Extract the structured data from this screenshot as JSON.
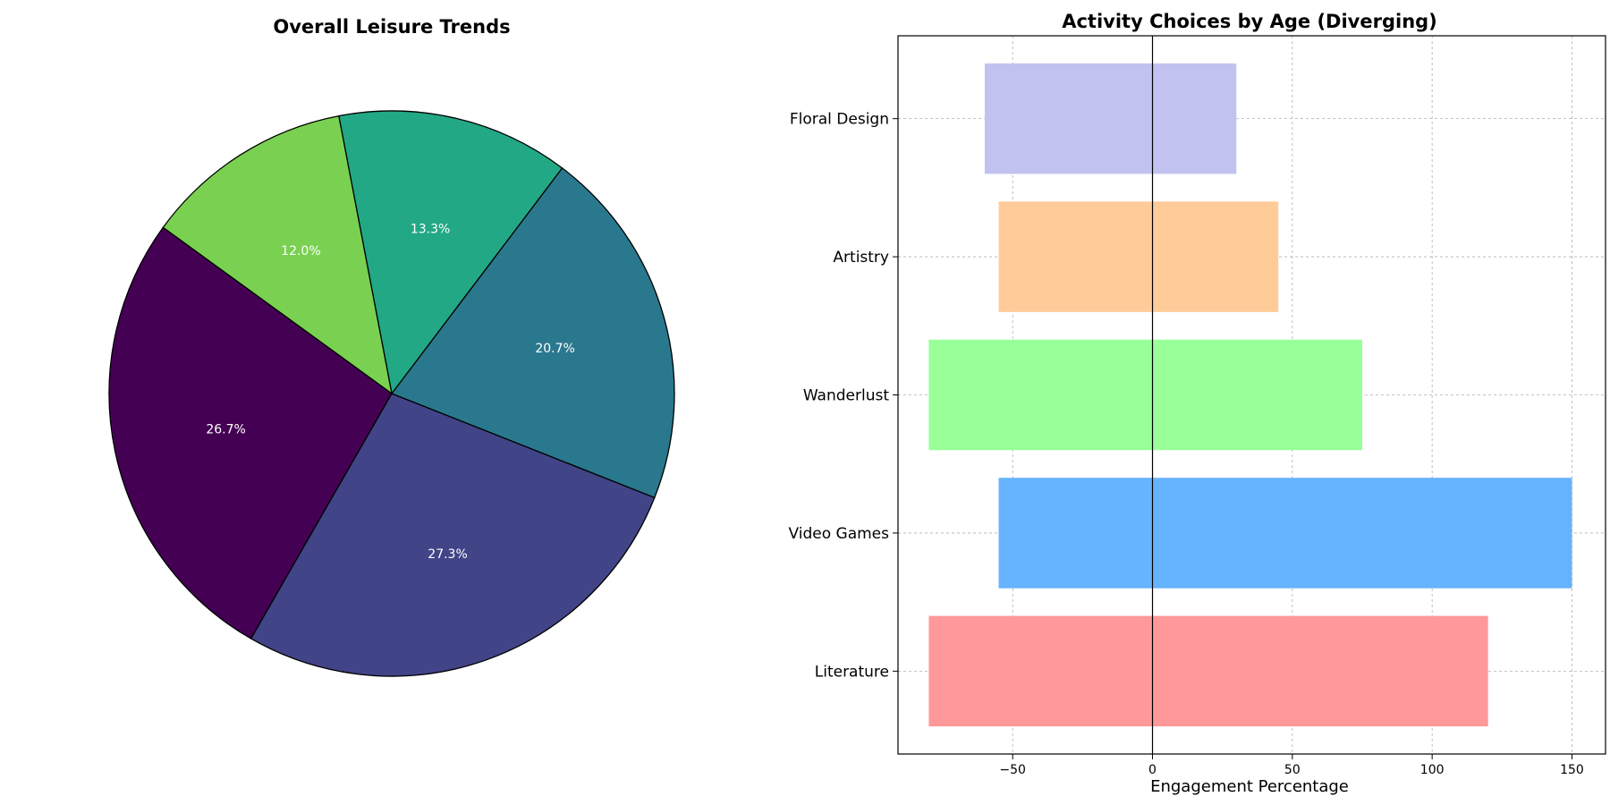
{
  "chart_data": [
    {
      "type": "pie",
      "title": "Overall Leisure Trends",
      "slices": [
        {
          "label_text": "26.7%",
          "value": 26.7,
          "color": "#440154"
        },
        {
          "label_text": "27.3%",
          "value": 27.3,
          "color": "#414487"
        },
        {
          "label_text": "20.7%",
          "value": 20.7,
          "color": "#2a788e"
        },
        {
          "label_text": "13.3%",
          "value": 13.3,
          "color": "#22a884"
        },
        {
          "label_text": "12.0%",
          "value": 12.0,
          "color": "#7ad151"
        }
      ],
      "edge_color": "#000000"
    },
    {
      "type": "bar",
      "orientation": "horizontal",
      "title": "Activity Choices by Age (Diverging)",
      "xlabel": "Engagement Percentage",
      "categories": [
        "Literature",
        "Video Games",
        "Wanderlust",
        "Artistry",
        "Floral Design"
      ],
      "series": [
        {
          "values": [
            -80,
            -55,
            -80,
            -55,
            -60
          ]
        },
        {
          "values": [
            120,
            150,
            75,
            45,
            30
          ]
        }
      ],
      "colors": [
        "#ff9999",
        "#66b3ff",
        "#99ff99",
        "#ffcc99",
        "#c2c2f0"
      ],
      "xlim": [
        -91,
        162
      ],
      "xticks": [
        -50,
        0,
        50,
        100,
        150
      ],
      "xtick_labels": [
        "−50",
        "0",
        "50",
        "100",
        "150"
      ],
      "grid": true
    }
  ]
}
